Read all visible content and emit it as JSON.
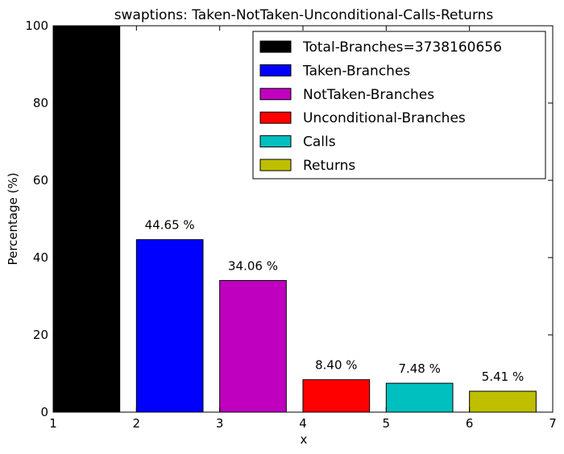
{
  "chart_data": {
    "type": "bar",
    "title": "swaptions: Taken-NotTaken-Unconditional-Calls-Returns",
    "xlabel": "x",
    "ylabel": "Percentage (%)",
    "xlim": [
      1,
      7
    ],
    "ylim": [
      0,
      100
    ],
    "x_ticks": [
      "1",
      "2",
      "3",
      "4",
      "5",
      "6",
      "7"
    ],
    "y_ticks": [
      "0",
      "20",
      "40",
      "60",
      "80",
      "100"
    ],
    "grid": false,
    "legend_position": "top-right",
    "bar_width": 0.8,
    "series": [
      {
        "name": "Total-Branches=3738160656",
        "x": 1,
        "value": 100.0,
        "color": "#000000",
        "label": ""
      },
      {
        "name": "Taken-Branches",
        "x": 2,
        "value": 44.65,
        "color": "#0000ff",
        "label": "44.65 %"
      },
      {
        "name": "NotTaken-Branches",
        "x": 3,
        "value": 34.06,
        "color": "#bf00bf",
        "label": "34.06 %"
      },
      {
        "name": "Unconditional-Branches",
        "x": 4,
        "value": 8.4,
        "color": "#ff0000",
        "label": "8.40 %"
      },
      {
        "name": "Calls",
        "x": 5,
        "value": 7.48,
        "color": "#00bfbf",
        "label": "7.48 %"
      },
      {
        "name": "Returns",
        "x": 6,
        "value": 5.41,
        "color": "#bfbf00",
        "label": "5.41 %"
      }
    ]
  }
}
